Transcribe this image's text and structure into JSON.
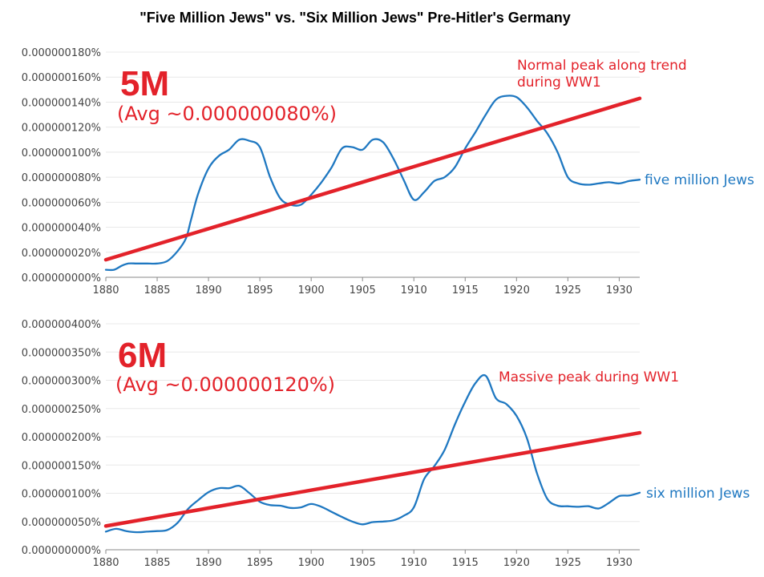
{
  "title": "\"Five Million Jews\" vs. \"Six Million Jews\" Pre-Hitler's Germany",
  "chart_data": [
    {
      "type": "line",
      "x_ticks": [
        "1880",
        "1885",
        "1890",
        "1895",
        "1900",
        "1905",
        "1910",
        "1915",
        "1920",
        "1925",
        "1930"
      ],
      "y_ticks": [
        "0.000000000%",
        "0.000000020%",
        "0.000000040%",
        "0.000000060%",
        "0.000000080%",
        "0.000000100%",
        "0.000000120%",
        "0.000000140%",
        "0.000000160%",
        "0.000000180%"
      ],
      "xlim": [
        1880,
        1932
      ],
      "ylim": [
        0,
        180
      ],
      "y_unit_note": "values in units of 1e-9 percent",
      "series": [
        {
          "name": "five million Jews",
          "color": "#1f78c1",
          "x": [
            1880,
            1880.8,
            1881.5,
            1882.2,
            1883,
            1884,
            1885,
            1886,
            1887,
            1887.8,
            1888.3,
            1889,
            1890,
            1891,
            1892,
            1893,
            1894,
            1895,
            1896,
            1897,
            1898,
            1899,
            1900,
            1901,
            1902,
            1903,
            1904,
            1905,
            1906,
            1907,
            1908,
            1909,
            1910,
            1911,
            1912,
            1913,
            1914,
            1915,
            1916,
            1917,
            1918,
            1919,
            1920,
            1921,
            1922,
            1923,
            1924,
            1925,
            1926,
            1927,
            1928,
            1929,
            1930,
            1931,
            1932
          ],
          "values": [
            6,
            6,
            9,
            11,
            11,
            11,
            11,
            13,
            21,
            31,
            46,
            67,
            87,
            97,
            102,
            110,
            109,
            104,
            80,
            63,
            58,
            58,
            66,
            76,
            88,
            103,
            104,
            102,
            110,
            108,
            95,
            78,
            62,
            68,
            77,
            80,
            88,
            103,
            116,
            130,
            142,
            145,
            144,
            136,
            125,
            115,
            100,
            80,
            75,
            74,
            75,
            76,
            75,
            77,
            78
          ]
        }
      ],
      "trend": {
        "color": "#e3222a",
        "x": [
          1880,
          1932
        ],
        "values": [
          14,
          143
        ]
      },
      "annotations": {
        "big": "5M",
        "avg": "(Avg ~0.000000080%)",
        "note_line1": "Normal peak along trend",
        "note_line2": "during WW1"
      }
    },
    {
      "type": "line",
      "x_ticks": [
        "1880",
        "1885",
        "1890",
        "1895",
        "1900",
        "1905",
        "1910",
        "1915",
        "1920",
        "1925",
        "1930"
      ],
      "y_ticks": [
        "0.000000000%",
        "0.000000050%",
        "0.000000100%",
        "0.000000150%",
        "0.000000200%",
        "0.000000250%",
        "0.000000300%",
        "0.000000350%",
        "0.000000400%"
      ],
      "xlim": [
        1880,
        1932
      ],
      "ylim": [
        0,
        400
      ],
      "y_unit_note": "values in units of 1e-9 percent",
      "series": [
        {
          "name": "six million Jews",
          "color": "#1f78c1",
          "x": [
            1880,
            1881,
            1882,
            1883,
            1884,
            1885,
            1886,
            1887,
            1888,
            1889,
            1890,
            1891,
            1892,
            1893,
            1894,
            1895,
            1896,
            1897,
            1898,
            1899,
            1900,
            1901,
            1902,
            1903,
            1904,
            1905,
            1906,
            1907,
            1908,
            1909,
            1910,
            1911,
            1912,
            1913,
            1914,
            1915,
            1916,
            1917,
            1918,
            1919,
            1920,
            1921,
            1922,
            1923,
            1924,
            1925,
            1926,
            1927,
            1928,
            1929,
            1930,
            1931,
            1932
          ],
          "values": [
            32,
            37,
            33,
            31,
            32,
            33,
            35,
            48,
            72,
            88,
            102,
            109,
            109,
            113,
            100,
            85,
            79,
            78,
            74,
            75,
            81,
            76,
            67,
            58,
            50,
            45,
            49,
            50,
            52,
            60,
            75,
            125,
            148,
            177,
            222,
            262,
            295,
            308,
            268,
            258,
            237,
            198,
            135,
            90,
            78,
            77,
            76,
            77,
            73,
            83,
            95,
            96,
            101
          ]
        }
      ],
      "trend": {
        "color": "#e3222a",
        "x": [
          1880,
          1932
        ],
        "values": [
          42,
          207
        ]
      },
      "annotations": {
        "big": "6M",
        "avg": "(Avg ~0.000000120%)",
        "note_line1": "Massive peak during WW1"
      }
    }
  ]
}
